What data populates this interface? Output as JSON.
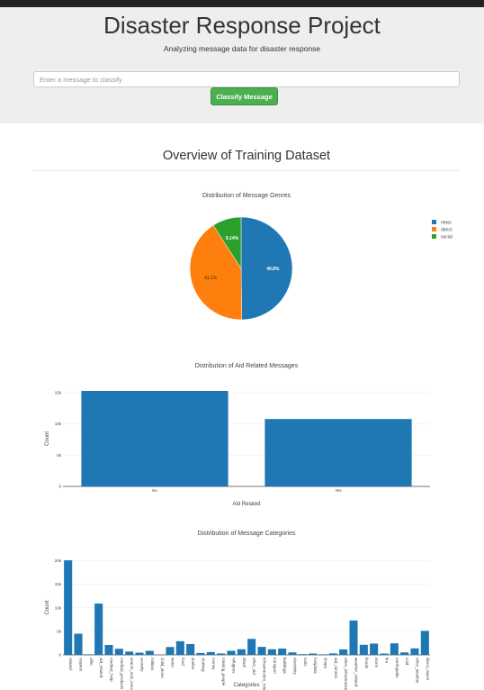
{
  "jumbotron": {
    "title": "Disaster Response Project",
    "subtitle": "Analyzing message data for disaster response",
    "input_placeholder": "Enter a message to classify",
    "button_label": "Classify Message"
  },
  "section_title": "Overview of Training Dataset",
  "colors": {
    "blue": "#1f77b4",
    "orange": "#ff7f0e",
    "green": "#2ca02c",
    "button": "#4caf50"
  },
  "chart_data": [
    {
      "type": "pie",
      "title": "Distribution of Message Genres",
      "labels": [
        "news",
        "direct",
        "social"
      ],
      "values": [
        49.8,
        41.1,
        9.14
      ],
      "value_labels": [
        "49.8%",
        "41.1%",
        "9.14%"
      ],
      "legend": "top-right"
    },
    {
      "type": "bar",
      "title": "Distribution of Aid Related Messages",
      "xlabel": "Aid Related",
      "ylabel": "Count",
      "categories": [
        "No",
        "Yes"
      ],
      "values": [
        15300,
        10800
      ],
      "yticks": [
        0,
        5000,
        10000,
        15000
      ],
      "ytick_labels": [
        "0",
        "5k",
        "10k",
        "15k"
      ],
      "ylim": [
        0,
        15300
      ],
      "grid": true
    },
    {
      "type": "bar",
      "title": "Distribution of Message Categories",
      "xlabel": "Categories",
      "ylabel": "Count",
      "categories": [
        "related",
        "request",
        "offer",
        "aid_related",
        "medical_help",
        "medical_products",
        "search_and_rescue",
        "security",
        "military",
        "child_alone",
        "water",
        "food",
        "shelter",
        "clothing",
        "money",
        "missing_people",
        "refugees",
        "death",
        "other_aid",
        "infrastructure_related",
        "transport",
        "buildings",
        "electricity",
        "tools",
        "hospitals",
        "shops",
        "aid_centers",
        "other_infrastructure",
        "weather_related",
        "floods",
        "storm",
        "fire",
        "earthquake",
        "cold",
        "other_weather",
        "direct_report"
      ],
      "values": [
        20100,
        4500,
        120,
        10900,
        2100,
        1300,
        700,
        470,
        860,
        0,
        1670,
        2900,
        2300,
        400,
        600,
        300,
        870,
        1200,
        3400,
        1700,
        1200,
        1330,
        530,
        160,
        280,
        120,
        310,
        1150,
        7300,
        2150,
        2400,
        280,
        2450,
        530,
        1380,
        5100
      ],
      "yticks": [
        0,
        5000,
        10000,
        15000,
        20000
      ],
      "ytick_labels": [
        "0",
        "5k",
        "10k",
        "15k",
        "20k"
      ],
      "ylim": [
        0,
        20100
      ],
      "grid": true
    }
  ]
}
